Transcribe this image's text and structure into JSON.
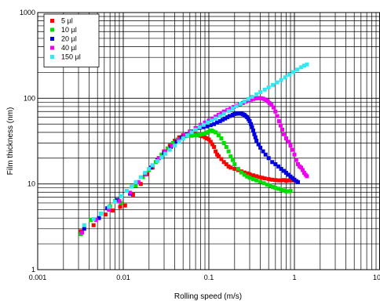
{
  "chart_data": {
    "type": "scatter",
    "xlabel": "Rolling speed (m/s)",
    "ylabel": "Film thickness (nm)",
    "x_scale": "log",
    "y_scale": "log",
    "xlim": [
      0.001,
      10
    ],
    "ylim": [
      1,
      1000
    ],
    "x_ticks": [
      "0.001",
      "0.01",
      "0.1",
      "1",
      "10"
    ],
    "y_ticks": [
      "1",
      "10",
      "100",
      "1000"
    ],
    "grid": "major and minor",
    "legend_position": "top-left",
    "series": [
      {
        "name": "5 µl",
        "color": "#ff0000",
        "points": [
          [
            0.0032,
            2.8
          ],
          [
            0.0045,
            3.3
          ],
          [
            0.0062,
            4.4
          ],
          [
            0.0075,
            4.9
          ],
          [
            0.0092,
            5.4
          ],
          [
            0.0105,
            5.6
          ],
          [
            0.013,
            7.5
          ],
          [
            0.016,
            10
          ],
          [
            0.019,
            13
          ],
          [
            0.022,
            15.5
          ],
          [
            0.026,
            20
          ],
          [
            0.03,
            24
          ],
          [
            0.035,
            28
          ],
          [
            0.04,
            32
          ],
          [
            0.045,
            35
          ],
          [
            0.05,
            37
          ],
          [
            0.055,
            38
          ],
          [
            0.06,
            39
          ],
          [
            0.065,
            38.5
          ],
          [
            0.07,
            38
          ],
          [
            0.075,
            37
          ],
          [
            0.08,
            36.5
          ],
          [
            0.085,
            36
          ],
          [
            0.09,
            35
          ],
          [
            0.095,
            34
          ],
          [
            0.1,
            33
          ],
          [
            0.105,
            31
          ],
          [
            0.11,
            29
          ],
          [
            0.115,
            27
          ],
          [
            0.12,
            24
          ],
          [
            0.125,
            22
          ],
          [
            0.13,
            21
          ],
          [
            0.14,
            19.5
          ],
          [
            0.15,
            18
          ],
          [
            0.16,
            17
          ],
          [
            0.17,
            16
          ],
          [
            0.18,
            15.5
          ],
          [
            0.2,
            15
          ],
          [
            0.22,
            14.5
          ],
          [
            0.24,
            14
          ],
          [
            0.26,
            13.6
          ],
          [
            0.28,
            13.3
          ],
          [
            0.3,
            13
          ],
          [
            0.33,
            12.6
          ],
          [
            0.36,
            12.3
          ],
          [
            0.39,
            12
          ],
          [
            0.42,
            11.8
          ],
          [
            0.45,
            11.6
          ],
          [
            0.5,
            11.4
          ],
          [
            0.55,
            11.2
          ],
          [
            0.6,
            11.1
          ],
          [
            0.65,
            11
          ],
          [
            0.7,
            11
          ],
          [
            0.75,
            11.1
          ],
          [
            0.8,
            10.9
          ],
          [
            0.85,
            11
          ],
          [
            0.9,
            11.1
          ],
          [
            0.95,
            11
          ],
          [
            1.0,
            11.2
          ],
          [
            1.05,
            10.8
          ]
        ]
      },
      {
        "name": "10 µl",
        "color": "#00dd00",
        "points": [
          [
            0.0032,
            2.6
          ],
          [
            0.0042,
            3.8
          ],
          [
            0.0055,
            4.5
          ],
          [
            0.007,
            5.5
          ],
          [
            0.008,
            6.3
          ],
          [
            0.0095,
            6.0
          ],
          [
            0.012,
            7.8
          ],
          [
            0.014,
            9.5
          ],
          [
            0.017,
            12
          ],
          [
            0.02,
            14.5
          ],
          [
            0.024,
            18
          ],
          [
            0.028,
            22
          ],
          [
            0.033,
            26
          ],
          [
            0.038,
            30
          ],
          [
            0.043,
            33
          ],
          [
            0.048,
            35
          ],
          [
            0.053,
            36
          ],
          [
            0.058,
            36.5
          ],
          [
            0.063,
            36.5
          ],
          [
            0.068,
            37
          ],
          [
            0.073,
            37
          ],
          [
            0.078,
            37.5
          ],
          [
            0.083,
            38
          ],
          [
            0.088,
            38.5
          ],
          [
            0.093,
            39.5
          ],
          [
            0.098,
            40.5
          ],
          [
            0.103,
            41.5
          ],
          [
            0.108,
            42
          ],
          [
            0.113,
            41
          ],
          [
            0.12,
            40
          ],
          [
            0.13,
            37
          ],
          [
            0.14,
            34
          ],
          [
            0.15,
            30
          ],
          [
            0.16,
            27
          ],
          [
            0.17,
            24
          ],
          [
            0.18,
            21
          ],
          [
            0.19,
            19
          ],
          [
            0.2,
            17
          ],
          [
            0.22,
            15
          ],
          [
            0.24,
            13.6
          ],
          [
            0.26,
            12.8
          ],
          [
            0.28,
            12.2
          ],
          [
            0.3,
            11.8
          ],
          [
            0.33,
            11.4
          ],
          [
            0.36,
            11
          ],
          [
            0.4,
            10.6
          ],
          [
            0.44,
            10.2
          ],
          [
            0.48,
            9.8
          ],
          [
            0.52,
            9.5
          ],
          [
            0.56,
            9.2
          ],
          [
            0.6,
            9
          ],
          [
            0.65,
            8.8
          ],
          [
            0.7,
            8.6
          ],
          [
            0.75,
            8.4
          ],
          [
            0.8,
            8.2
          ],
          [
            0.86,
            8.2
          ],
          [
            0.9,
            8.3
          ]
        ]
      },
      {
        "name": "20 µl",
        "color": "#0000dd",
        "points": [
          [
            0.0035,
            3.0
          ],
          [
            0.0052,
            4.0
          ],
          [
            0.0065,
            5.2
          ],
          [
            0.0085,
            6.5
          ],
          [
            0.012,
            7.7
          ],
          [
            0.015,
            10.5
          ],
          [
            0.018,
            13
          ],
          [
            0.021,
            15.5
          ],
          [
            0.025,
            19
          ],
          [
            0.03,
            23
          ],
          [
            0.036,
            27
          ],
          [
            0.042,
            31
          ],
          [
            0.048,
            35
          ],
          [
            0.055,
            38
          ],
          [
            0.062,
            41
          ],
          [
            0.07,
            43
          ],
          [
            0.078,
            45
          ],
          [
            0.086,
            46
          ],
          [
            0.095,
            47
          ],
          [
            0.105,
            48.5
          ],
          [
            0.115,
            50
          ],
          [
            0.125,
            52
          ],
          [
            0.135,
            54
          ],
          [
            0.145,
            56
          ],
          [
            0.155,
            58
          ],
          [
            0.165,
            60
          ],
          [
            0.175,
            62
          ],
          [
            0.19,
            64
          ],
          [
            0.2,
            65.5
          ],
          [
            0.21,
            66
          ],
          [
            0.22,
            66.5
          ],
          [
            0.23,
            66.5
          ],
          [
            0.24,
            66
          ],
          [
            0.25,
            65
          ],
          [
            0.26,
            64
          ],
          [
            0.27,
            62
          ],
          [
            0.28,
            60
          ],
          [
            0.29,
            57
          ],
          [
            0.3,
            54
          ],
          [
            0.31,
            50
          ],
          [
            0.32,
            46
          ],
          [
            0.33,
            42
          ],
          [
            0.34,
            38
          ],
          [
            0.35,
            35
          ],
          [
            0.36,
            32
          ],
          [
            0.38,
            29
          ],
          [
            0.4,
            26.5
          ],
          [
            0.43,
            24
          ],
          [
            0.46,
            22
          ],
          [
            0.5,
            20
          ],
          [
            0.55,
            18
          ],
          [
            0.6,
            17
          ],
          [
            0.65,
            16
          ],
          [
            0.7,
            15
          ],
          [
            0.75,
            14.2
          ],
          [
            0.8,
            13.5
          ],
          [
            0.85,
            12.8
          ],
          [
            0.9,
            12.2
          ],
          [
            0.95,
            11.7
          ],
          [
            1.0,
            11.2
          ],
          [
            1.05,
            10.8
          ],
          [
            1.1,
            10.5
          ]
        ]
      },
      {
        "name": "40 µl",
        "color": "#ee00ee",
        "points": [
          [
            0.0033,
            2.7
          ],
          [
            0.0048,
            3.8
          ],
          [
            0.0068,
            5.0
          ],
          [
            0.009,
            6.3
          ],
          [
            0.012,
            7.9
          ],
          [
            0.015,
            10.5
          ],
          [
            0.018,
            13
          ],
          [
            0.022,
            16.5
          ],
          [
            0.026,
            20
          ],
          [
            0.031,
            24
          ],
          [
            0.037,
            28
          ],
          [
            0.044,
            32.5
          ],
          [
            0.052,
            37
          ],
          [
            0.06,
            41
          ],
          [
            0.07,
            45
          ],
          [
            0.08,
            49
          ],
          [
            0.09,
            52
          ],
          [
            0.1,
            55
          ],
          [
            0.11,
            58
          ],
          [
            0.12,
            61
          ],
          [
            0.13,
            64
          ],
          [
            0.14,
            67
          ],
          [
            0.15,
            70
          ],
          [
            0.165,
            73
          ],
          [
            0.18,
            76
          ],
          [
            0.195,
            79
          ],
          [
            0.21,
            82
          ],
          [
            0.23,
            85
          ],
          [
            0.25,
            88
          ],
          [
            0.27,
            91
          ],
          [
            0.29,
            94
          ],
          [
            0.31,
            96
          ],
          [
            0.33,
            98
          ],
          [
            0.35,
            99.5
          ],
          [
            0.37,
            100
          ],
          [
            0.39,
            100.5
          ],
          [
            0.41,
            100
          ],
          [
            0.43,
            99
          ],
          [
            0.45,
            97
          ],
          [
            0.47,
            95
          ],
          [
            0.49,
            92
          ],
          [
            0.51,
            88
          ],
          [
            0.54,
            84
          ],
          [
            0.57,
            78
          ],
          [
            0.6,
            70
          ],
          [
            0.63,
            62
          ],
          [
            0.66,
            54
          ],
          [
            0.69,
            48
          ],
          [
            0.72,
            43
          ],
          [
            0.75,
            38
          ],
          [
            0.8,
            34
          ],
          [
            0.85,
            31
          ],
          [
            0.9,
            28
          ],
          [
            0.95,
            25
          ],
          [
            1.0,
            22
          ],
          [
            1.05,
            19
          ],
          [
            1.1,
            17
          ],
          [
            1.15,
            16
          ],
          [
            1.2,
            15.5
          ],
          [
            1.25,
            14.5
          ],
          [
            1.3,
            13.5
          ],
          [
            1.35,
            12.8
          ],
          [
            1.4,
            12.3
          ]
        ]
      },
      {
        "name": "150 µl",
        "color": "#33e8f0",
        "points": [
          [
            0.0035,
            3.3
          ],
          [
            0.0045,
            3.9
          ],
          [
            0.0055,
            4.5
          ],
          [
            0.0068,
            5.4
          ],
          [
            0.008,
            6.2
          ],
          [
            0.0095,
            7.2
          ],
          [
            0.011,
            8.3
          ],
          [
            0.0125,
            9.3
          ],
          [
            0.014,
            10.5
          ],
          [
            0.016,
            12
          ],
          [
            0.018,
            13.5
          ],
          [
            0.02,
            15
          ],
          [
            0.022,
            16.5
          ],
          [
            0.025,
            18.5
          ],
          [
            0.028,
            20.5
          ],
          [
            0.031,
            22.5
          ],
          [
            0.035,
            25
          ],
          [
            0.04,
            28
          ],
          [
            0.045,
            31
          ],
          [
            0.05,
            34
          ],
          [
            0.056,
            37
          ],
          [
            0.063,
            40
          ],
          [
            0.07,
            43
          ],
          [
            0.078,
            46
          ],
          [
            0.087,
            49
          ],
          [
            0.097,
            52
          ],
          [
            0.108,
            55
          ],
          [
            0.12,
            58
          ],
          [
            0.135,
            62
          ],
          [
            0.15,
            66
          ],
          [
            0.17,
            71
          ],
          [
            0.19,
            76
          ],
          [
            0.21,
            81
          ],
          [
            0.235,
            86
          ],
          [
            0.26,
            92
          ],
          [
            0.29,
            98
          ],
          [
            0.32,
            104
          ],
          [
            0.36,
            111
          ],
          [
            0.4,
            118
          ],
          [
            0.45,
            126
          ],
          [
            0.5,
            134
          ],
          [
            0.56,
            143
          ],
          [
            0.63,
            153
          ],
          [
            0.7,
            163
          ],
          [
            0.78,
            175
          ],
          [
            0.87,
            188
          ],
          [
            0.97,
            202
          ],
          [
            1.08,
            216
          ],
          [
            1.2,
            230
          ],
          [
            1.3,
            240
          ],
          [
            1.4,
            248
          ]
        ]
      }
    ]
  }
}
